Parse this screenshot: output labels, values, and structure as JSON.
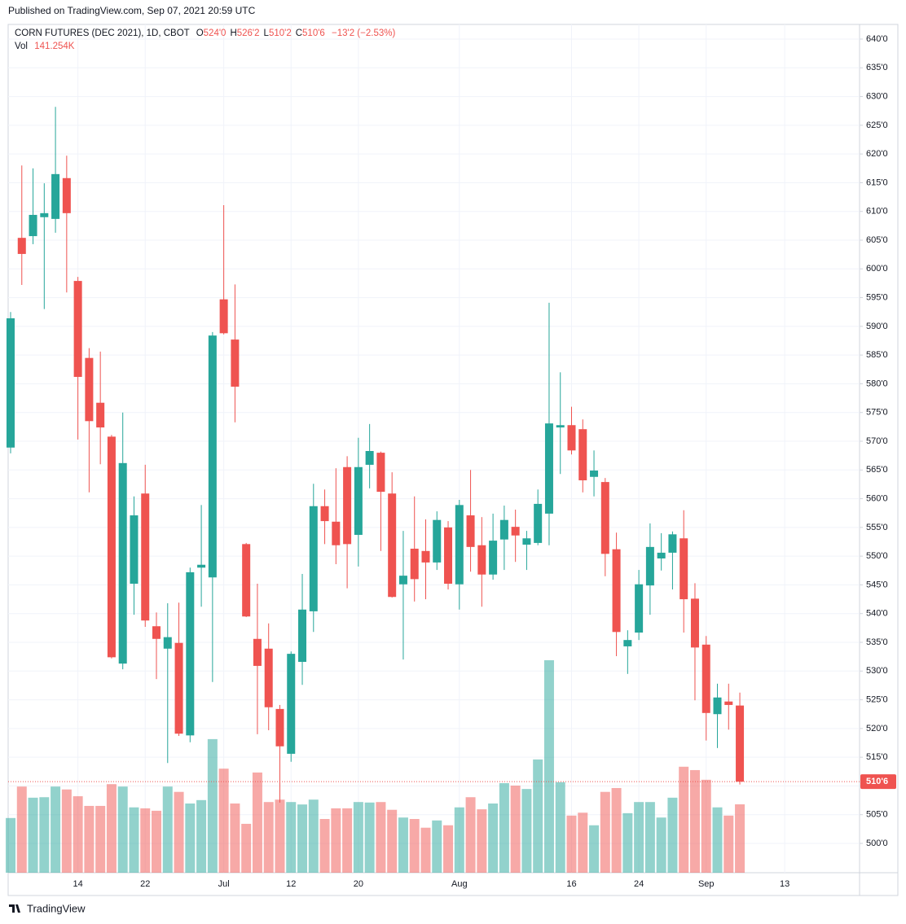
{
  "header": {
    "published": "Published on TradingView.com, Sep 07, 2021 20:59 UTC",
    "symbol": "CORN FUTURES (DEC 2021), 1D, CBOT",
    "ohlc": [
      {
        "label": "O",
        "value": "524'0"
      },
      {
        "label": "H",
        "value": "526'2"
      },
      {
        "label": "L",
        "value": "510'2"
      },
      {
        "label": "C",
        "value": "510'6"
      }
    ],
    "change": "−13'2 (−2.53%)",
    "volume_title": "Vol",
    "volume_value": "141.254K",
    "brand": "TradingView"
  },
  "chart_data": {
    "type": "candlestick",
    "categories": [
      null,
      null,
      null,
      null,
      null,
      null,
      "14",
      null,
      null,
      null,
      null,
      null,
      "22",
      null,
      null,
      null,
      null,
      null,
      null,
      "Jul",
      null,
      null,
      null,
      null,
      null,
      "12",
      null,
      null,
      null,
      null,
      null,
      "20",
      null,
      null,
      null,
      null,
      null,
      null,
      null,
      null,
      "Aug",
      null,
      null,
      null,
      null,
      null,
      null,
      null,
      null,
      null,
      "16",
      null,
      null,
      null,
      null,
      null,
      "24",
      null,
      null,
      null,
      null,
      null,
      "Sep",
      null,
      null,
      null,
      null,
      null,
      null,
      "13",
      null,
      null,
      null,
      null,
      null,
      null
    ],
    "open": [
      568.9,
      605.4,
      605.7,
      609.0,
      608.7,
      615.8,
      597.9,
      584.5,
      576.7,
      570.8,
      531.3,
      545.2,
      560.9,
      537.8,
      533.9,
      534.9,
      518.8,
      548.0,
      546.3,
      594.7,
      587.7,
      552.1,
      535.6,
      533.9,
      523.4,
      515.6,
      531.6,
      540.4,
      558.7,
      556.0,
      565.5,
      553.7,
      565.9,
      568.0,
      560.9,
      545.1,
      551.3,
      550.9,
      548.9,
      555.0,
      545.1,
      557.1,
      551.9,
      546.8,
      552.9,
      555.1,
      552.0,
      552.3,
      557.4,
      572.4,
      572.8,
      572.1,
      563.8,
      562.9,
      551.2,
      534.3,
      536.7,
      544.9,
      549.6,
      550.6,
      553.1,
      542.6,
      534.6,
      522.5,
      524.7,
      524.0,
      null,
      null,
      null,
      null,
      null,
      null,
      null,
      null,
      null,
      null
    ],
    "high": [
      592.5,
      618.0,
      617.5,
      614.9,
      628.2,
      619.7,
      598.6,
      586.2,
      585.6,
      571.1,
      575.0,
      560.4,
      565.9,
      540.2,
      541.8,
      541.9,
      548.0,
      558.9,
      589.0,
      611.1,
      597.3,
      552.3,
      545.2,
      538.3,
      524.1,
      533.4,
      546.9,
      562.6,
      561.6,
      565.3,
      567.4,
      570.6,
      573.0,
      568.2,
      564.6,
      554.4,
      560.4,
      556.4,
      557.8,
      556.1,
      559.8,
      565.0,
      556.8,
      557.4,
      558.8,
      558.1,
      554.4,
      561.6,
      594.1,
      582.0,
      576.0,
      573.8,
      568.4,
      563.6,
      554.1,
      537.1,
      547.6,
      555.7,
      554.0,
      554.3,
      558.0,
      545.3,
      536.1,
      527.8,
      527.8,
      526.25,
      null,
      null,
      null,
      null,
      null,
      null,
      null,
      null,
      null,
      null
    ],
    "low": [
      567.9,
      597.2,
      604.3,
      593.0,
      606.3,
      595.9,
      570.3,
      561.1,
      566.0,
      532.2,
      530.3,
      539.8,
      537.7,
      528.6,
      514.0,
      518.7,
      517.6,
      541.2,
      528.1,
      588.6,
      573.3,
      539.4,
      519.0,
      519.7,
      507.1,
      514.2,
      527.6,
      536.8,
      552.1,
      548.6,
      544.4,
      548.2,
      561.8,
      550.9,
      542.8,
      532.0,
      542.1,
      542.5,
      547.6,
      544.2,
      540.7,
      547.3,
      541.2,
      545.9,
      547.6,
      549.0,
      547.6,
      551.9,
      551.9,
      564.3,
      567.7,
      561.1,
      560.4,
      546.5,
      532.6,
      529.5,
      535.4,
      539.8,
      547.5,
      544.2,
      536.7,
      524.9,
      517.9,
      516.6,
      519.8,
      510.25,
      null,
      null,
      null,
      null,
      null,
      null,
      null,
      null,
      null,
      null
    ],
    "close": [
      591.4,
      602.6,
      609.4,
      609.7,
      616.5,
      609.7,
      581.2,
      573.5,
      572.4,
      532.4,
      566.2,
      557.1,
      538.8,
      535.6,
      535.9,
      519.1,
      547.2,
      548.5,
      588.4,
      588.8,
      579.5,
      539.5,
      530.9,
      523.7,
      516.9,
      533.0,
      540.7,
      558.7,
      556.1,
      551.9,
      552.1,
      565.5,
      568.3,
      561.2,
      542.9,
      546.6,
      546.0,
      548.9,
      556.3,
      545.2,
      558.9,
      551.6,
      546.8,
      552.7,
      556.3,
      553.6,
      553.1,
      559.1,
      573.1,
      572.8,
      568.4,
      563.2,
      564.9,
      550.4,
      536.8,
      535.4,
      545.1,
      551.6,
      550.6,
      553.8,
      542.5,
      534.1,
      522.7,
      525.4,
      524.1,
      510.75,
      null,
      null,
      null,
      null,
      null,
      null,
      null,
      null,
      null,
      null
    ],
    "volume": [
      113,
      178,
      155,
      156,
      178,
      172,
      158,
      138,
      138,
      183,
      178,
      135,
      133,
      128,
      178,
      167,
      143,
      150,
      276,
      215,
      143,
      101,
      207,
      146,
      151,
      146,
      141,
      151,
      111,
      133,
      133,
      146,
      145,
      146,
      130,
      114,
      111,
      93,
      108,
      98,
      135,
      156,
      131,
      143,
      185,
      180,
      173,
      234,
      439,
      187,
      118,
      124,
      98,
      167,
      175,
      123,
      146,
      146,
      114,
      155,
      219,
      212,
      192,
      135,
      118,
      141.254,
      null,
      null,
      null,
      null,
      null,
      null,
      null,
      null,
      null,
      null
    ],
    "up_color": "#26a69a",
    "down_color": "#ef5350",
    "up_volume_color": "rgba(38,166,154,0.5)",
    "down_volume_color": "rgba(239,83,80,0.5)",
    "last_price": {
      "value": 510.75,
      "label": "510'6"
    },
    "ylim": [
      494.9,
      642.55
    ],
    "yticks": [
      {
        "value": 500,
        "label": "500'0"
      },
      {
        "value": 505,
        "label": "505'0"
      },
      {
        "value": 510,
        "label": "510'0"
      },
      {
        "value": 515,
        "label": "515'0"
      },
      {
        "value": 520,
        "label": "520'0"
      },
      {
        "value": 525,
        "label": "525'0"
      },
      {
        "value": 530,
        "label": "530'0"
      },
      {
        "value": 535,
        "label": "535'0"
      },
      {
        "value": 540,
        "label": "540'0"
      },
      {
        "value": 545,
        "label": "545'0"
      },
      {
        "value": 550,
        "label": "550'0"
      },
      {
        "value": 555,
        "label": "555'0"
      },
      {
        "value": 560,
        "label": "560'0"
      },
      {
        "value": 565,
        "label": "565'0"
      },
      {
        "value": 570,
        "label": "570'0"
      },
      {
        "value": 575,
        "label": "575'0"
      },
      {
        "value": 580,
        "label": "580'0"
      },
      {
        "value": 585,
        "label": "585'0"
      },
      {
        "value": 590,
        "label": "590'0"
      },
      {
        "value": 595,
        "label": "595'0"
      },
      {
        "value": 600,
        "label": "600'0"
      },
      {
        "value": 605,
        "label": "605'0"
      },
      {
        "value": 610,
        "label": "610'0"
      },
      {
        "value": 615,
        "label": "615'0"
      },
      {
        "value": 620,
        "label": "620'0"
      },
      {
        "value": 625,
        "label": "625'0"
      },
      {
        "value": 630,
        "label": "630'0"
      },
      {
        "value": 635,
        "label": "635'0"
      },
      {
        "value": 640,
        "label": "640'0"
      }
    ],
    "grid": true
  }
}
